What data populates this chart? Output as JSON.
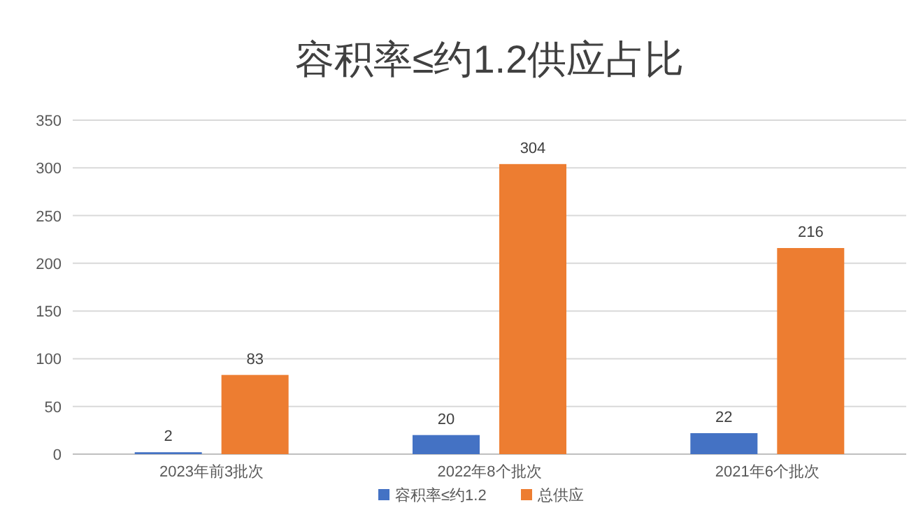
{
  "chart_data": {
    "type": "bar",
    "title": "容积率≤约1.2供应占比",
    "categories": [
      "2023年前3批次",
      "2022年8个批次",
      "2021年6个批次"
    ],
    "series": [
      {
        "name": "容积率≤约1.2",
        "color": "#4472c4",
        "values": [
          2,
          20,
          22
        ]
      },
      {
        "name": "总供应",
        "color": "#ed7d31",
        "values": [
          83,
          304,
          216
        ]
      }
    ],
    "ylim": [
      0,
      350
    ],
    "yticks": [
      0,
      50,
      100,
      150,
      200,
      250,
      300,
      350
    ],
    "grid": "y",
    "legend": "bottom",
    "data_labels": true
  }
}
